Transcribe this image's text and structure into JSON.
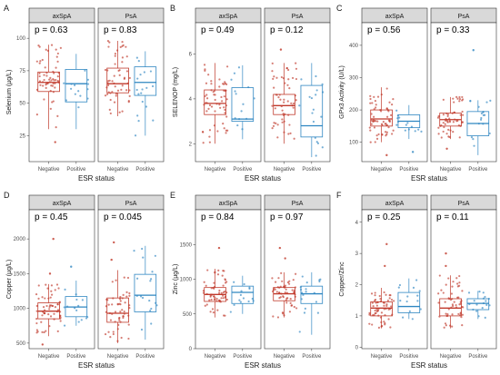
{
  "colors": {
    "Negative": "#c0392b",
    "Positive": "#2e86c1"
  },
  "chart_data": [
    {
      "type": "box",
      "tag": "A",
      "ylabel": "Selenium (µg/L)",
      "xlabel": "ESR status",
      "ylim": [
        5,
        112
      ],
      "yticks": [
        25,
        50,
        75,
        100
      ],
      "facets": [
        {
          "name": "axSpA",
          "p": "p = 0.63",
          "groups": [
            {
              "category": "Negative",
              "min": 30,
              "q1": 59,
              "median": 66,
              "q3": 74,
              "max": 95,
              "outliers": [
                20
              ],
              "n": 60
            },
            {
              "category": "Positive",
              "min": 30,
              "q1": 51,
              "median": 65,
              "q3": 76,
              "max": 88,
              "outliers": [],
              "n": 14
            }
          ]
        },
        {
          "name": "PsA",
          "p": "p = 0.83",
          "groups": [
            {
              "category": "Negative",
              "min": 40,
              "q1": 58,
              "median": 65,
              "q3": 77,
              "max": 98,
              "outliers": [],
              "n": 55
            },
            {
              "category": "Positive",
              "min": 25,
              "q1": 56,
              "median": 66,
              "q3": 78,
              "max": 90,
              "outliers": [],
              "n": 18
            }
          ]
        }
      ]
    },
    {
      "type": "box",
      "tag": "B",
      "ylabel": "SELENOP (mg/L)",
      "xlabel": "ESR status",
      "ylim": [
        1.2,
        7.4
      ],
      "yticks": [
        2,
        4,
        6
      ],
      "facets": [
        {
          "name": "axSpA",
          "p": "p = 0.49",
          "groups": [
            {
              "category": "Negative",
              "min": 2.0,
              "q1": 3.3,
              "median": 3.8,
              "q3": 4.4,
              "max": 5.6,
              "outliers": [],
              "n": 60
            },
            {
              "category": "Positive",
              "min": 2.2,
              "q1": 3.0,
              "median": 3.1,
              "q3": 4.5,
              "max": 5.5,
              "outliers": [],
              "n": 14
            }
          ]
        },
        {
          "name": "PsA",
          "p": "p = 0.12",
          "groups": [
            {
              "category": "Negative",
              "min": 2.0,
              "q1": 3.3,
              "median": 3.7,
              "q3": 4.2,
              "max": 5.6,
              "outliers": [
                6.2
              ],
              "n": 55
            },
            {
              "category": "Positive",
              "min": 1.4,
              "q1": 2.3,
              "median": 2.8,
              "q3": 4.6,
              "max": 5.6,
              "outliers": [],
              "n": 18
            }
          ]
        }
      ]
    },
    {
      "type": "box",
      "tag": "C",
      "ylabel": "GPx3 Activity (U/L)",
      "xlabel": "ESR status",
      "ylim": [
        40,
        470
      ],
      "yticks": [
        100,
        200,
        300,
        400
      ],
      "facets": [
        {
          "name": "axSpA",
          "p": "p = 0.56",
          "groups": [
            {
              "category": "Negative",
              "min": 100,
              "q1": 150,
              "median": 172,
              "q3": 200,
              "max": 270,
              "outliers": [
                60
              ],
              "n": 60
            },
            {
              "category": "Positive",
              "min": 110,
              "q1": 145,
              "median": 165,
              "q3": 185,
              "max": 215,
              "outliers": [
                70
              ],
              "n": 14
            }
          ]
        },
        {
          "name": "PsA",
          "p": "p = 0.33",
          "groups": [
            {
              "category": "Negative",
              "min": 110,
              "q1": 150,
              "median": 170,
              "q3": 190,
              "max": 240,
              "outliers": [
                80
              ],
              "n": 55
            },
            {
              "category": "Positive",
              "min": 60,
              "q1": 120,
              "median": 158,
              "q3": 195,
              "max": 230,
              "outliers": [
                385
              ],
              "n": 18
            }
          ]
        }
      ]
    },
    {
      "type": "box",
      "tag": "D",
      "ylabel": "Copper (µg/L)",
      "xlabel": "ESR status",
      "ylim": [
        420,
        2420
      ],
      "yticks": [
        500,
        1000,
        1500,
        2000
      ],
      "facets": [
        {
          "name": "axSpA",
          "p": "p = 0.45",
          "groups": [
            {
              "category": "Negative",
              "min": 600,
              "q1": 850,
              "median": 960,
              "q3": 1080,
              "max": 1350,
              "outliers": [
                2000,
                1500,
                480
              ],
              "n": 60
            },
            {
              "category": "Positive",
              "min": 750,
              "q1": 880,
              "median": 1020,
              "q3": 1170,
              "max": 1400,
              "outliers": [
                1600
              ],
              "n": 14
            }
          ]
        },
        {
          "name": "PsA",
          "p": "p = 0.045",
          "groups": [
            {
              "category": "Negative",
              "min": 500,
              "q1": 800,
              "median": 930,
              "q3": 1150,
              "max": 1550,
              "outliers": [
                1950,
                1700
              ],
              "n": 55
            },
            {
              "category": "Positive",
              "min": 550,
              "q1": 950,
              "median": 1190,
              "q3": 1490,
              "max": 1900,
              "outliers": [],
              "n": 18
            }
          ]
        }
      ]
    },
    {
      "type": "box",
      "tag": "E",
      "ylabel": "Zinc (µg/L)",
      "xlabel": "ESR status",
      "ylim": [
        0,
        2000
      ],
      "yticks": [
        0,
        500,
        1000,
        1500
      ],
      "facets": [
        {
          "name": "axSpA",
          "p": "p = 0.84",
          "groups": [
            {
              "category": "Negative",
              "min": 450,
              "q1": 680,
              "median": 780,
              "q3": 880,
              "max": 1150,
              "outliers": [
                1450
              ],
              "n": 60
            },
            {
              "category": "Positive",
              "min": 500,
              "q1": 650,
              "median": 810,
              "q3": 900,
              "max": 1050,
              "outliers": [],
              "n": 14
            }
          ]
        },
        {
          "name": "PsA",
          "p": "p = 0.97",
          "groups": [
            {
              "category": "Negative",
              "min": 450,
              "q1": 690,
              "median": 790,
              "q3": 880,
              "max": 1100,
              "outliers": [
                1450,
                1300
              ],
              "n": 55
            },
            {
              "category": "Positive",
              "min": 200,
              "q1": 650,
              "median": 790,
              "q3": 900,
              "max": 1100,
              "outliers": [],
              "n": 18
            }
          ]
        }
      ]
    },
    {
      "type": "box",
      "tag": "F",
      "ylabel": "Copper/Zinc",
      "xlabel": "ESR status",
      "ylim": [
        -0.05,
        4.4
      ],
      "yticks": [
        0,
        1,
        2,
        3,
        4
      ],
      "facets": [
        {
          "name": "axSpA",
          "p": "p = 0.25",
          "groups": [
            {
              "category": "Negative",
              "min": 0.6,
              "q1": 1.0,
              "median": 1.25,
              "q3": 1.45,
              "max": 1.9,
              "outliers": [
                2.6,
                3.3
              ],
              "n": 60
            },
            {
              "category": "Positive",
              "min": 0.9,
              "q1": 1.1,
              "median": 1.3,
              "q3": 1.75,
              "max": 2.2,
              "outliers": [],
              "n": 14
            }
          ]
        },
        {
          "name": "PsA",
          "p": "p = 0.11",
          "groups": [
            {
              "category": "Negative",
              "min": 0.6,
              "q1": 1.0,
              "median": 1.25,
              "q3": 1.55,
              "max": 2.3,
              "outliers": [
                3.0,
                2.6
              ],
              "n": 55
            },
            {
              "category": "Positive",
              "min": 0.9,
              "q1": 1.2,
              "median": 1.4,
              "q3": 1.55,
              "max": 1.8,
              "outliers": [],
              "n": 18
            }
          ]
        }
      ]
    }
  ]
}
